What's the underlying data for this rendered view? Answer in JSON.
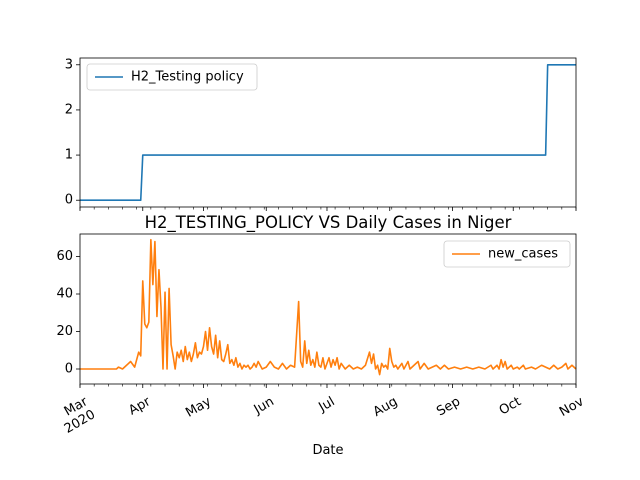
{
  "chart_data": [
    {
      "type": "line",
      "title": "",
      "xlabel": "",
      "ylabel": "",
      "x_range": [
        "2020-03-01",
        "2020-11-01"
      ],
      "ylim": [
        -0.15,
        3.15
      ],
      "yticks": [
        0,
        1,
        2,
        3
      ],
      "grid": false,
      "legend_position": "top-left",
      "series": [
        {
          "name": "H2_Testing policy",
          "color": "#1f77b4",
          "step_points": [
            {
              "x": "2020-03-01",
              "y": 0
            },
            {
              "x": "2020-03-31",
              "y": 0
            },
            {
              "x": "2020-04-01",
              "y": 1
            },
            {
              "x": "2020-10-17",
              "y": 1
            },
            {
              "x": "2020-10-18",
              "y": 3
            },
            {
              "x": "2020-11-01",
              "y": 3
            }
          ]
        }
      ]
    },
    {
      "type": "line",
      "title": "H2_TESTING_POLICY VS Daily Cases in Niger",
      "xlabel": "Date",
      "ylabel": "",
      "x_range": [
        "2020-03-01",
        "2020-11-01"
      ],
      "ylim": [
        -8,
        72
      ],
      "yticks": [
        0,
        20,
        40,
        60
      ],
      "xtick_labels": [
        {
          "date": "2020-03-01",
          "label": "Mar",
          "sublabel": "2020"
        },
        {
          "date": "2020-04-01",
          "label": "Apr"
        },
        {
          "date": "2020-05-01",
          "label": "May"
        },
        {
          "date": "2020-06-01",
          "label": "Jun"
        },
        {
          "date": "2020-07-01",
          "label": "Jul"
        },
        {
          "date": "2020-08-01",
          "label": "Aug"
        },
        {
          "date": "2020-09-01",
          "label": "Sep"
        },
        {
          "date": "2020-10-01",
          "label": "Oct"
        },
        {
          "date": "2020-11-01",
          "label": "Nov"
        }
      ],
      "grid": false,
      "legend_position": "top-right",
      "series": [
        {
          "name": "new_cases",
          "color": "#ff7f0e",
          "points": [
            {
              "x": "2020-03-01",
              "y": 0
            },
            {
              "x": "2020-03-19",
              "y": 0
            },
            {
              "x": "2020-03-20",
              "y": 1
            },
            {
              "x": "2020-03-22",
              "y": 0
            },
            {
              "x": "2020-03-24",
              "y": 2
            },
            {
              "x": "2020-03-26",
              "y": 4
            },
            {
              "x": "2020-03-28",
              "y": 1
            },
            {
              "x": "2020-03-30",
              "y": 9
            },
            {
              "x": "2020-03-31",
              "y": 7
            },
            {
              "x": "2020-04-01",
              "y": 47
            },
            {
              "x": "2020-04-02",
              "y": 24
            },
            {
              "x": "2020-04-03",
              "y": 22
            },
            {
              "x": "2020-04-04",
              "y": 25
            },
            {
              "x": "2020-04-05",
              "y": 69
            },
            {
              "x": "2020-04-06",
              "y": 45
            },
            {
              "x": "2020-04-07",
              "y": 68
            },
            {
              "x": "2020-04-08",
              "y": 28
            },
            {
              "x": "2020-04-09",
              "y": 53
            },
            {
              "x": "2020-04-10",
              "y": 33
            },
            {
              "x": "2020-04-11",
              "y": 0
            },
            {
              "x": "2020-04-12",
              "y": 41
            },
            {
              "x": "2020-04-13",
              "y": 0
            },
            {
              "x": "2020-04-14",
              "y": 43
            },
            {
              "x": "2020-04-15",
              "y": 13
            },
            {
              "x": "2020-04-16",
              "y": 7
            },
            {
              "x": "2020-04-17",
              "y": 0
            },
            {
              "x": "2020-04-18",
              "y": 9
            },
            {
              "x": "2020-04-19",
              "y": 6
            },
            {
              "x": "2020-04-20",
              "y": 10
            },
            {
              "x": "2020-04-21",
              "y": 4
            },
            {
              "x": "2020-04-22",
              "y": 12
            },
            {
              "x": "2020-04-23",
              "y": 5
            },
            {
              "x": "2020-04-24",
              "y": 9
            },
            {
              "x": "2020-04-25",
              "y": 4
            },
            {
              "x": "2020-04-26",
              "y": 8
            },
            {
              "x": "2020-04-27",
              "y": 14
            },
            {
              "x": "2020-04-28",
              "y": 6
            },
            {
              "x": "2020-04-29",
              "y": 9
            },
            {
              "x": "2020-04-30",
              "y": 8
            },
            {
              "x": "2020-05-01",
              "y": 12
            },
            {
              "x": "2020-05-02",
              "y": 20
            },
            {
              "x": "2020-05-03",
              "y": 10
            },
            {
              "x": "2020-05-04",
              "y": 22
            },
            {
              "x": "2020-05-05",
              "y": 12
            },
            {
              "x": "2020-05-06",
              "y": 8
            },
            {
              "x": "2020-05-07",
              "y": 18
            },
            {
              "x": "2020-05-08",
              "y": 6
            },
            {
              "x": "2020-05-09",
              "y": 15
            },
            {
              "x": "2020-05-10",
              "y": 5
            },
            {
              "x": "2020-05-11",
              "y": 4
            },
            {
              "x": "2020-05-12",
              "y": 8
            },
            {
              "x": "2020-05-13",
              "y": 13
            },
            {
              "x": "2020-05-14",
              "y": 3
            },
            {
              "x": "2020-05-15",
              "y": 5
            },
            {
              "x": "2020-05-16",
              "y": 2
            },
            {
              "x": "2020-05-17",
              "y": 6
            },
            {
              "x": "2020-05-18",
              "y": 1
            },
            {
              "x": "2020-05-19",
              "y": 3
            },
            {
              "x": "2020-05-20",
              "y": 0
            },
            {
              "x": "2020-05-21",
              "y": 2
            },
            {
              "x": "2020-05-22",
              "y": 1
            },
            {
              "x": "2020-05-23",
              "y": 2
            },
            {
              "x": "2020-05-24",
              "y": 0
            },
            {
              "x": "2020-05-25",
              "y": 1
            },
            {
              "x": "2020-05-26",
              "y": 3
            },
            {
              "x": "2020-05-27",
              "y": 1
            },
            {
              "x": "2020-05-28",
              "y": 4
            },
            {
              "x": "2020-05-29",
              "y": 2
            },
            {
              "x": "2020-05-30",
              "y": 0
            },
            {
              "x": "2020-06-01",
              "y": 1
            },
            {
              "x": "2020-06-03",
              "y": 4
            },
            {
              "x": "2020-06-05",
              "y": 1
            },
            {
              "x": "2020-06-07",
              "y": 0
            },
            {
              "x": "2020-06-09",
              "y": 3
            },
            {
              "x": "2020-06-11",
              "y": 0
            },
            {
              "x": "2020-06-13",
              "y": 2
            },
            {
              "x": "2020-06-15",
              "y": 1
            },
            {
              "x": "2020-06-17",
              "y": 36
            },
            {
              "x": "2020-06-18",
              "y": 4
            },
            {
              "x": "2020-06-19",
              "y": 1
            },
            {
              "x": "2020-06-20",
              "y": 15
            },
            {
              "x": "2020-06-21",
              "y": 3
            },
            {
              "x": "2020-06-22",
              "y": 10
            },
            {
              "x": "2020-06-23",
              "y": 2
            },
            {
              "x": "2020-06-24",
              "y": 5
            },
            {
              "x": "2020-06-25",
              "y": 1
            },
            {
              "x": "2020-06-26",
              "y": 9
            },
            {
              "x": "2020-06-27",
              "y": 2
            },
            {
              "x": "2020-06-28",
              "y": 1
            },
            {
              "x": "2020-06-29",
              "y": 6
            },
            {
              "x": "2020-06-30",
              "y": 0
            },
            {
              "x": "2020-07-02",
              "y": 6
            },
            {
              "x": "2020-07-03",
              "y": 1
            },
            {
              "x": "2020-07-04",
              "y": 5
            },
            {
              "x": "2020-07-05",
              "y": 2
            },
            {
              "x": "2020-07-06",
              "y": 6
            },
            {
              "x": "2020-07-07",
              "y": 0
            },
            {
              "x": "2020-07-08",
              "y": 3
            },
            {
              "x": "2020-07-10",
              "y": 0
            },
            {
              "x": "2020-07-12",
              "y": 2
            },
            {
              "x": "2020-07-14",
              "y": 0
            },
            {
              "x": "2020-07-16",
              "y": 1
            },
            {
              "x": "2020-07-18",
              "y": 0
            },
            {
              "x": "2020-07-20",
              "y": 2
            },
            {
              "x": "2020-07-22",
              "y": 9
            },
            {
              "x": "2020-07-23",
              "y": 3
            },
            {
              "x": "2020-07-24",
              "y": 8
            },
            {
              "x": "2020-07-25",
              "y": 0
            },
            {
              "x": "2020-07-26",
              "y": 2
            },
            {
              "x": "2020-07-27",
              "y": -3
            },
            {
              "x": "2020-07-28",
              "y": 3
            },
            {
              "x": "2020-07-29",
              "y": 1
            },
            {
              "x": "2020-07-30",
              "y": 2
            },
            {
              "x": "2020-07-31",
              "y": 0
            },
            {
              "x": "2020-08-01",
              "y": 11
            },
            {
              "x": "2020-08-02",
              "y": 4
            },
            {
              "x": "2020-08-03",
              "y": 1
            },
            {
              "x": "2020-08-04",
              "y": 2
            },
            {
              "x": "2020-08-05",
              "y": 0
            },
            {
              "x": "2020-08-07",
              "y": 3
            },
            {
              "x": "2020-08-08",
              "y": 0
            },
            {
              "x": "2020-08-10",
              "y": 4
            },
            {
              "x": "2020-08-11",
              "y": 0
            },
            {
              "x": "2020-08-13",
              "y": 2
            },
            {
              "x": "2020-08-15",
              "y": 4
            },
            {
              "x": "2020-08-16",
              "y": 0
            },
            {
              "x": "2020-08-18",
              "y": 3
            },
            {
              "x": "2020-08-20",
              "y": 0
            },
            {
              "x": "2020-08-22",
              "y": 1
            },
            {
              "x": "2020-08-24",
              "y": 2
            },
            {
              "x": "2020-08-26",
              "y": 0
            },
            {
              "x": "2020-08-28",
              "y": 2
            },
            {
              "x": "2020-08-30",
              "y": 0
            },
            {
              "x": "2020-09-02",
              "y": 1
            },
            {
              "x": "2020-09-05",
              "y": 0
            },
            {
              "x": "2020-09-08",
              "y": 1
            },
            {
              "x": "2020-09-11",
              "y": 0
            },
            {
              "x": "2020-09-14",
              "y": 1
            },
            {
              "x": "2020-09-17",
              "y": 0
            },
            {
              "x": "2020-09-20",
              "y": 2
            },
            {
              "x": "2020-09-21",
              "y": 0
            },
            {
              "x": "2020-09-23",
              "y": 2
            },
            {
              "x": "2020-09-24",
              "y": 0
            },
            {
              "x": "2020-09-25",
              "y": 5
            },
            {
              "x": "2020-09-26",
              "y": 1
            },
            {
              "x": "2020-09-27",
              "y": 4
            },
            {
              "x": "2020-09-28",
              "y": 0
            },
            {
              "x": "2020-09-30",
              "y": 2
            },
            {
              "x": "2020-10-01",
              "y": 0
            },
            {
              "x": "2020-10-03",
              "y": 1
            },
            {
              "x": "2020-10-04",
              "y": 0
            },
            {
              "x": "2020-10-06",
              "y": 2
            },
            {
              "x": "2020-10-07",
              "y": 0
            },
            {
              "x": "2020-10-10",
              "y": 1
            },
            {
              "x": "2020-10-12",
              "y": 0
            },
            {
              "x": "2020-10-15",
              "y": 2
            },
            {
              "x": "2020-10-17",
              "y": 1
            },
            {
              "x": "2020-10-19",
              "y": 0
            },
            {
              "x": "2020-10-21",
              "y": 2
            },
            {
              "x": "2020-10-23",
              "y": 0
            },
            {
              "x": "2020-10-25",
              "y": 1
            },
            {
              "x": "2020-10-27",
              "y": 3
            },
            {
              "x": "2020-10-28",
              "y": 0
            },
            {
              "x": "2020-10-30",
              "y": 2
            },
            {
              "x": "2020-11-01",
              "y": 0
            }
          ]
        }
      ]
    }
  ]
}
